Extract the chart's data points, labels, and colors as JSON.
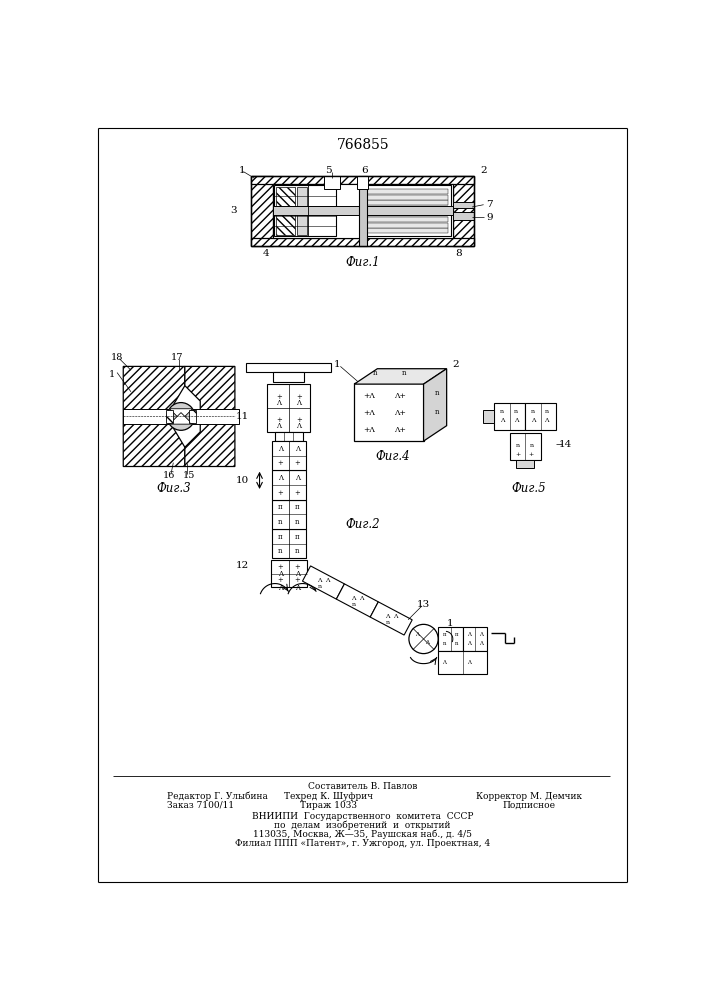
{
  "patent_number": "766855",
  "background_color": "#ffffff",
  "fig1_label": "Фиг.1",
  "fig2_label": "Фиг.2",
  "fig3_label": "Фиг.3",
  "fig4_label": "Фиг.4",
  "fig5_label": "Фиг.5",
  "footer_editor": "Редактор Г. Улыбина",
  "footer_compiler": "Составитель В. Павлов",
  "footer_corrector": "Корректор М. Демчик",
  "footer_order": "Заказ 7100/11",
  "footer_techred": "Техред К. Шуфрич",
  "footer_tirazh": "Тираж 1033",
  "footer_podpisnoe": "Подписное",
  "footer_vniipи": "ВНИИПИ  Государственного  комитета  СССР",
  "footer_po": "по  делам  изобретений  и  открытий",
  "footer_addr1": "113035, Москва, Ж—35, Раушская наб., д. 4/5",
  "footer_addr2": "Филиал ППП «Патент», г. Ужгород, ул. Проектная, 4"
}
